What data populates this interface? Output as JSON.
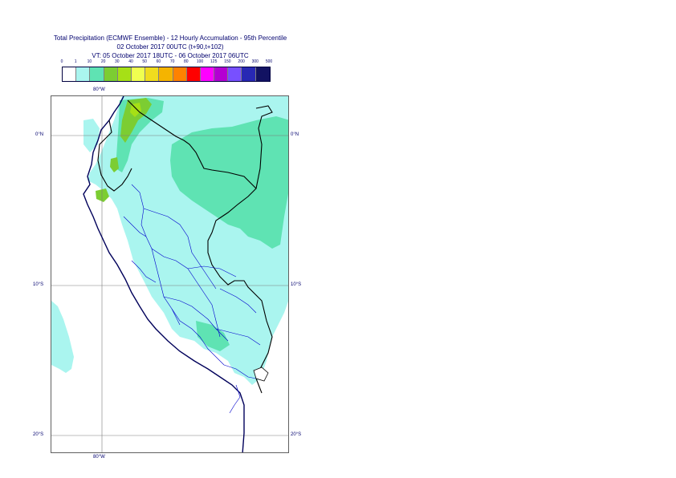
{
  "title": {
    "line1": "Total Precipitation (ECMWF Ensemble) - 12 Hourly Accumulation - 95th Percentile",
    "line2": "02 October 2017 00UTC (t+90,t+102)",
    "line3": "VT: 05 October 2017 18UTC - 06 October 2017 06UTC"
  },
  "legend": {
    "labels": [
      "0",
      "1",
      "10",
      "20",
      "30",
      "40",
      "50",
      "60",
      "70",
      "80",
      "100",
      "125",
      "150",
      "200",
      "300",
      "500"
    ],
    "colors": [
      "#ffffff",
      "#aaf5ef",
      "#5fe3b3",
      "#7ccd32",
      "#a6e016",
      "#f0ff50",
      "#f0dc1e",
      "#f5b400",
      "#ff8200",
      "#ff0000",
      "#ff00ff",
      "#b400d2",
      "#7850ff",
      "#2828b4",
      "#121262"
    ]
  },
  "grid": {
    "lon_top": "80°W",
    "lon_bottom": "80°W",
    "lat_left": [
      "0°N",
      "10°S",
      "20°S"
    ],
    "lat_right": [
      "0°N",
      "10°S",
      "20°S"
    ]
  }
}
